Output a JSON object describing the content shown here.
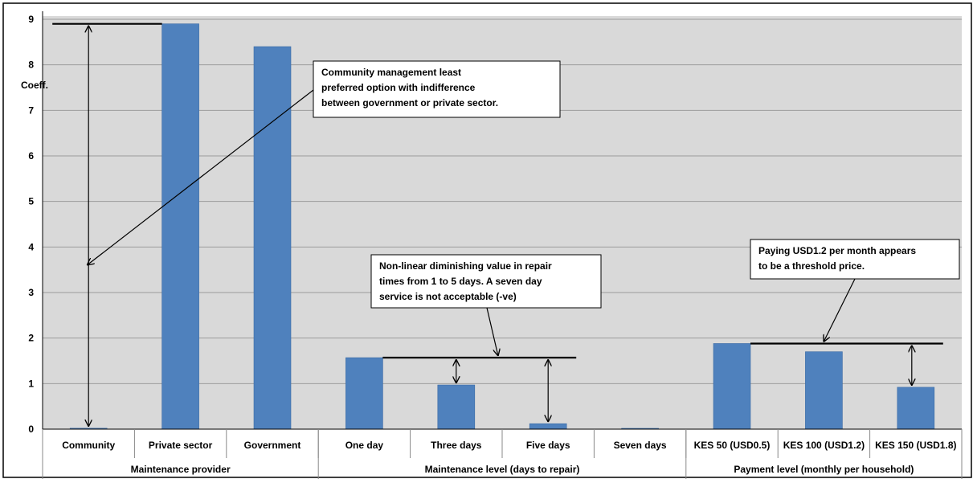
{
  "chart_data": {
    "type": "bar",
    "ylabel": "Coeff.",
    "ylim": [
      0,
      9
    ],
    "yticks": [
      "0",
      "1",
      "2",
      "3",
      "4",
      "5",
      "6",
      "7",
      "8",
      "9"
    ],
    "grid": true,
    "bar_color": "#4f81bd",
    "plot_background": "#d9d9d9",
    "categories": [
      "Community",
      "Private sector",
      "Government",
      "One day",
      "Three days",
      "Five days",
      "Seven days",
      "KES 50 (USD0.5)",
      "KES 100 (USD1.2)",
      "KES 150 (USD1.8)"
    ],
    "values": [
      0.02,
      8.9,
      8.4,
      1.57,
      0.97,
      0.12,
      0.01,
      1.88,
      1.7,
      0.92
    ],
    "groups": [
      {
        "label": "Maintenance provider",
        "count": 3
      },
      {
        "label": "Maintenance level (days to repair)",
        "count": 4
      },
      {
        "label": "Payment level (monthly per household)",
        "count": 3
      }
    ],
    "annotations": [
      {
        "lines": [
          "Community management least",
          "preferred option with indifference",
          "between government or private sector."
        ]
      },
      {
        "lines": [
          "Non-linear diminishing value in repair",
          "times from 1 to 5 days. A seven day",
          "service is not acceptable (-ve)"
        ]
      },
      {
        "lines": [
          "Paying USD1.2 per month appears",
          "to be a threshold price."
        ]
      }
    ]
  }
}
